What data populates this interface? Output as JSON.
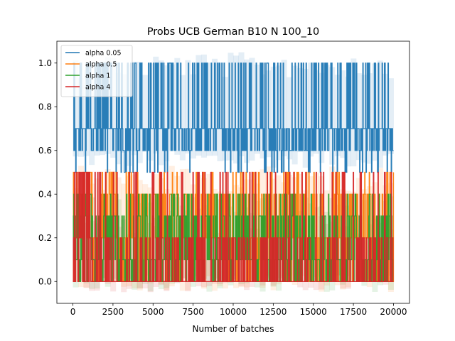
{
  "chart_data": {
    "type": "line",
    "title": "Probs UCB German B10 N 100_10",
    "xlabel": "Number of batches",
    "ylabel": "",
    "xlim": [
      -1000,
      21000
    ],
    "ylim": [
      -0.1,
      1.1
    ],
    "xticks": [
      0,
      2500,
      5000,
      7500,
      10000,
      12500,
      15000,
      17500,
      20000
    ],
    "xtick_labels": [
      "0",
      "2500",
      "5000",
      "7500",
      "10000",
      "12500",
      "15000",
      "17500",
      "20000"
    ],
    "yticks": [
      0.0,
      0.2,
      0.4,
      0.6,
      0.8,
      1.0
    ],
    "ytick_labels": [
      "0.0",
      "0.2",
      "0.4",
      "0.6",
      "0.8",
      "1.0"
    ],
    "grid": false,
    "legend": {
      "position": "top-left"
    },
    "x_range": [
      0,
      20000
    ],
    "series": [
      {
        "name": "alpha 0.05",
        "color": "#1f77b4",
        "main_level": 0.7,
        "low": 0.6,
        "high": 1.0,
        "rare_low": 0.5,
        "band": [
          0.52,
          1.05
        ]
      },
      {
        "name": "alpha 0.5",
        "color": "#ff7f0e",
        "main_level": 0.2,
        "low": 0.0,
        "high": 0.4,
        "rare_high": 0.5,
        "band": [
          -0.05,
          0.53
        ]
      },
      {
        "name": "alpha 1",
        "color": "#2ca02c",
        "main_level": 0.1,
        "low": 0.0,
        "high": 0.3,
        "rare_high": 0.4,
        "band": [
          -0.05,
          0.4
        ]
      },
      {
        "name": "alpha 4",
        "color": "#d62728",
        "main_level": 0.0,
        "low": 0.0,
        "high": 0.2,
        "rare_high": 0.5,
        "band": [
          -0.05,
          0.3
        ]
      }
    ]
  }
}
